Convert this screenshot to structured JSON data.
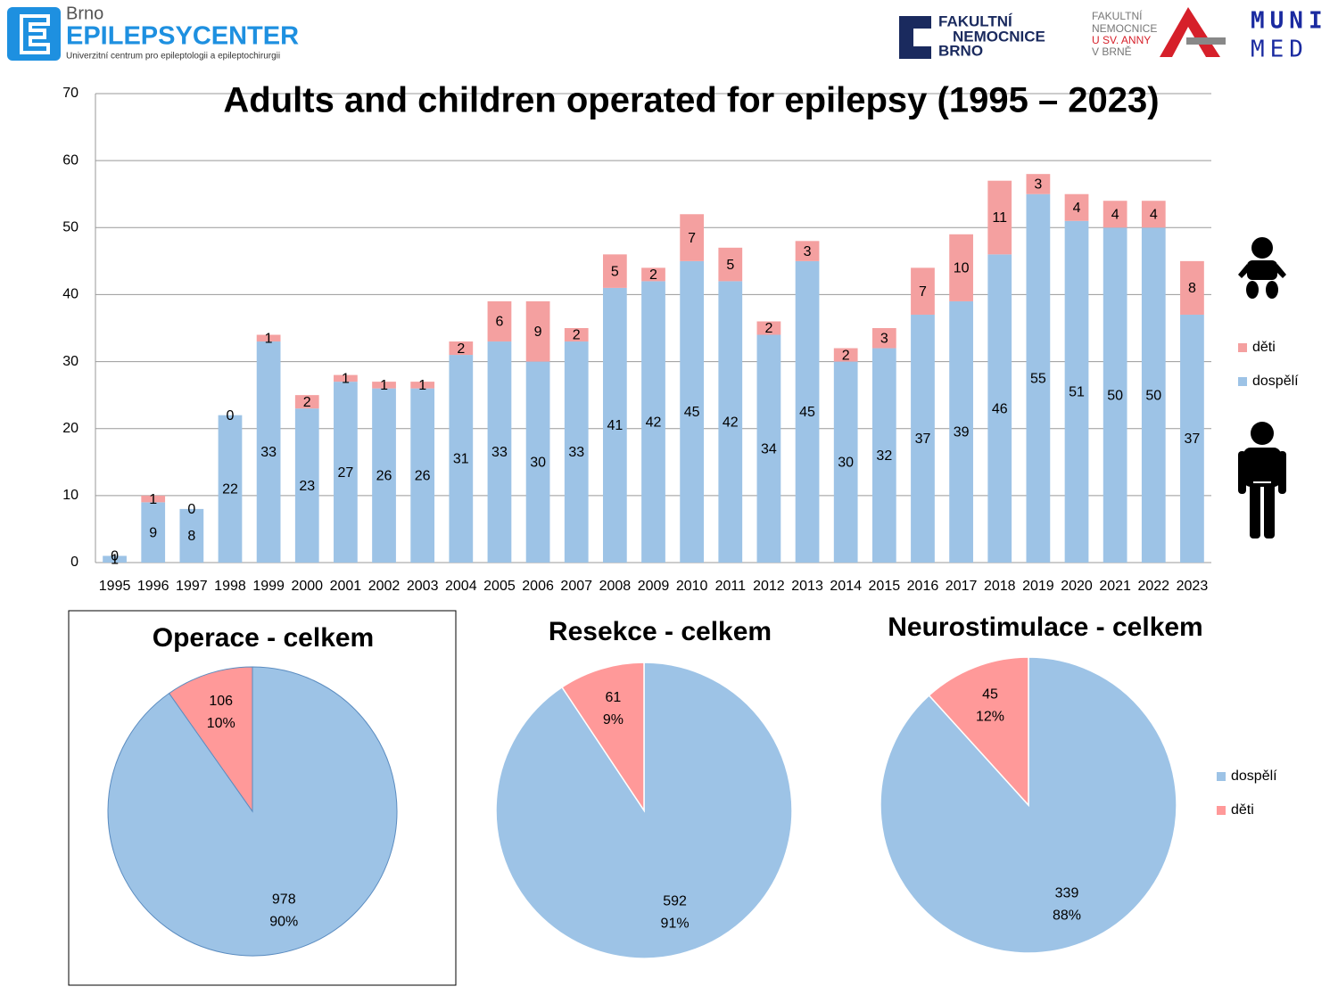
{
  "logos": {
    "brno": "Brno",
    "center": "EPILEPSYCENTER",
    "tagline": "Univerzitní centrum pro epileptologii a epileptochirurgii",
    "fnb": [
      "FAKULTNÍ",
      "NEMOCNICE",
      "BRNO"
    ],
    "fnusa": [
      "FAKULTNÍ",
      "NEMOCNICE",
      "U SV. ANNY",
      "V BRNĚ"
    ],
    "muni": [
      "MUNI",
      "MED"
    ]
  },
  "chart_data": [
    {
      "type": "stacked_bar",
      "title": "Adults and children operated for epilepsy (1995 – 2023)",
      "categories": [
        "1995",
        "1996",
        "1997",
        "1998",
        "1999",
        "2000",
        "2001",
        "2002",
        "2003",
        "2004",
        "2005",
        "2006",
        "2007",
        "2008",
        "2009",
        "2010",
        "2011",
        "2012",
        "2013",
        "2014",
        "2015",
        "2016",
        "2017",
        "2018",
        "2019",
        "2020",
        "2021",
        "2022",
        "2023"
      ],
      "series": [
        {
          "name": "dospělí",
          "color": "#9dc3e6",
          "values": [
            1,
            9,
            8,
            22,
            33,
            23,
            27,
            26,
            26,
            31,
            33,
            30,
            33,
            41,
            42,
            45,
            42,
            34,
            45,
            30,
            32,
            37,
            39,
            46,
            55,
            51,
            50,
            50,
            37
          ]
        },
        {
          "name": "děti",
          "color": "#f4a0a0",
          "values": [
            0,
            1,
            0,
            0,
            1,
            2,
            1,
            1,
            1,
            2,
            6,
            9,
            2,
            5,
            2,
            7,
            5,
            2,
            3,
            2,
            3,
            7,
            10,
            11,
            3,
            4,
            4,
            4,
            8
          ]
        }
      ],
      "ylim": [
        0,
        70
      ],
      "yticks": [
        0,
        10,
        20,
        30,
        40,
        50,
        60,
        70
      ],
      "grid": true,
      "legend": "right"
    },
    {
      "type": "pie",
      "title": "Operace - celkem",
      "categories": [
        "dospělí",
        "děti"
      ],
      "values": [
        978,
        106
      ],
      "percentages": [
        90,
        10
      ],
      "value_labels": [
        "90%",
        "10%"
      ],
      "colors": [
        "#9dc3e6",
        "#ff9999"
      ],
      "border": true
    },
    {
      "type": "pie",
      "title": "Resekce - celkem",
      "categories": [
        "dospělí",
        "děti"
      ],
      "values": [
        592,
        61
      ],
      "percentages": [
        91,
        9
      ],
      "value_labels": [
        "91%",
        "9%"
      ],
      "colors": [
        "#9dc3e6",
        "#ff9999"
      ]
    },
    {
      "type": "pie",
      "title": "Neurostimulace - celkem",
      "categories": [
        "dospělí",
        "děti"
      ],
      "values": [
        339,
        45
      ],
      "percentages": [
        88,
        12
      ],
      "value_labels": [
        "88%",
        "12%"
      ],
      "colors": [
        "#9dc3e6",
        "#ff9999"
      ],
      "legend": "right"
    }
  ]
}
